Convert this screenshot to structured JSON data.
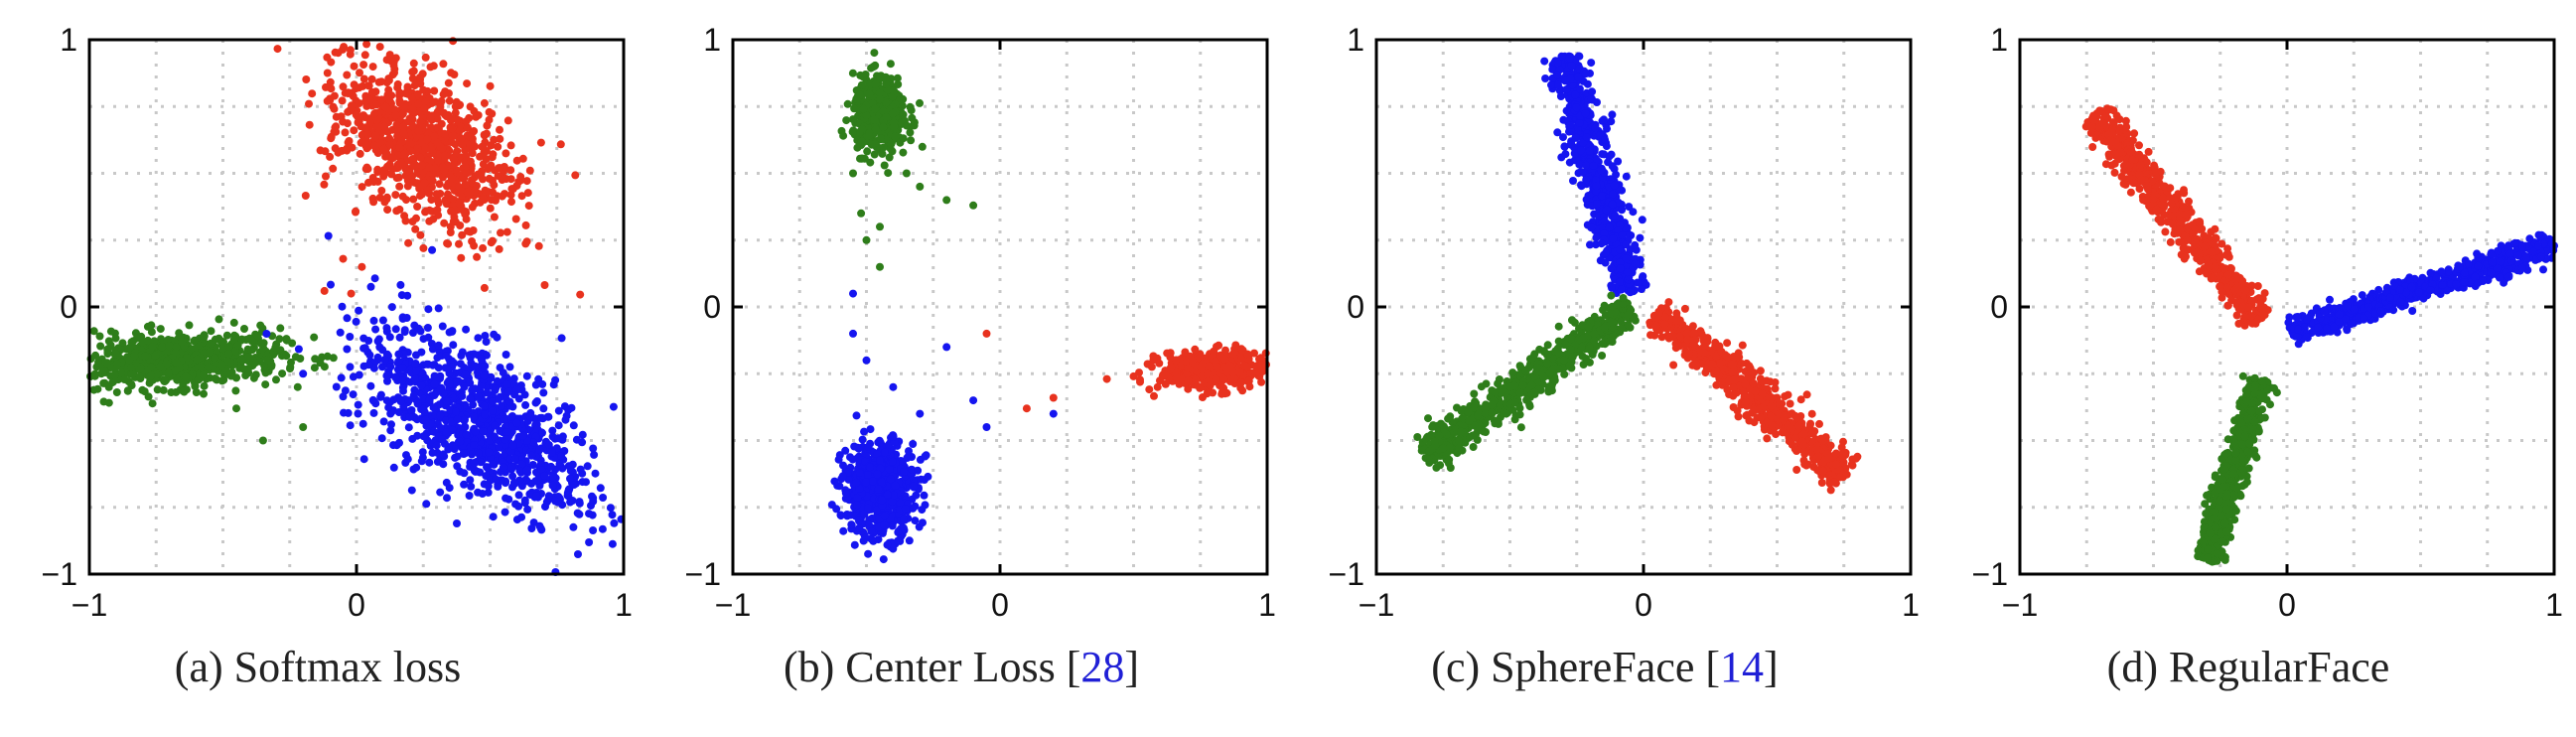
{
  "colors": {
    "red": "#e8321e",
    "green": "#2e7d1a",
    "blue": "#1515f0",
    "ref": "#1f1fd6",
    "grid": "#c8c8c8"
  },
  "chart_data": [
    {
      "type": "scatter",
      "caption_prefix": "(a) Softmax loss",
      "ref_open": "",
      "ref_num": "",
      "ref_close": "",
      "xlim": [
        -1,
        1
      ],
      "ylim": [
        -1,
        1
      ],
      "xticks": [
        "−1",
        "0",
        "1"
      ],
      "yticks": [
        "−1",
        "0",
        "1"
      ],
      "grid": true,
      "series": [
        {
          "color": "red",
          "count": 900,
          "shape": "blob",
          "center": [
            0.25,
            0.6
          ],
          "sx": 0.12,
          "sy": 0.2,
          "rot": 0.9
        },
        {
          "color": "green",
          "count": 700,
          "shape": "blob",
          "center": [
            -0.68,
            -0.2
          ],
          "sx": 0.2,
          "sy": 0.05,
          "rot": 0.05
        },
        {
          "color": "blue",
          "count": 1000,
          "shape": "blob",
          "center": [
            0.45,
            -0.42
          ],
          "sx": 0.25,
          "sy": 0.12,
          "rot": -0.6
        }
      ],
      "outliers": [
        {
          "color": "red",
          "points": [
            [
              -0.12,
              0.06
            ],
            [
              0.02,
              0.15
            ],
            [
              -0.05,
              0.18
            ],
            [
              -0.02,
              0.05
            ]
          ]
        },
        {
          "color": "green",
          "points": [
            [
              -0.22,
              -0.3
            ],
            [
              -0.35,
              -0.5
            ],
            [
              -0.45,
              -0.38
            ],
            [
              -0.2,
              -0.45
            ]
          ]
        },
        {
          "color": "blue",
          "points": [
            [
              -0.2,
              -0.25
            ],
            [
              0.05,
              -0.18
            ],
            [
              0.1,
              -0.05
            ]
          ]
        }
      ]
    },
    {
      "type": "scatter",
      "caption_prefix": "(b) Center Loss ",
      "ref_open": "[",
      "ref_num": "28",
      "ref_close": "]",
      "xlim": [
        -1,
        1
      ],
      "ylim": [
        -1,
        1
      ],
      "xticks": [
        "−1",
        "0",
        "1"
      ],
      "yticks": [
        "−1",
        "0",
        "1"
      ],
      "grid": true,
      "series": [
        {
          "color": "green",
          "count": 450,
          "shape": "blob",
          "center": [
            -0.45,
            0.72
          ],
          "sx": 0.05,
          "sy": 0.07,
          "rot": 0.0
        },
        {
          "color": "red",
          "count": 450,
          "shape": "blob",
          "center": [
            0.8,
            -0.24
          ],
          "sx": 0.1,
          "sy": 0.035,
          "rot": 0.0
        },
        {
          "color": "blue",
          "count": 600,
          "shape": "blob",
          "center": [
            -0.45,
            -0.68
          ],
          "sx": 0.07,
          "sy": 0.09,
          "rot": 0.0
        }
      ],
      "outliers": [
        {
          "color": "green",
          "points": [
            [
              -0.55,
              0.5
            ],
            [
              -0.35,
              0.5
            ],
            [
              -0.3,
              0.45
            ],
            [
              -0.2,
              0.4
            ],
            [
              -0.1,
              0.38
            ],
            [
              -0.45,
              0.3
            ],
            [
              -0.5,
              0.25
            ],
            [
              -0.45,
              0.15
            ],
            [
              -0.52,
              0.35
            ]
          ]
        },
        {
          "color": "blue",
          "points": [
            [
              -0.55,
              -0.1
            ],
            [
              -0.5,
              -0.2
            ],
            [
              -0.2,
              -0.15
            ],
            [
              -0.4,
              -0.3
            ],
            [
              -0.3,
              -0.4
            ],
            [
              -0.1,
              -0.35
            ],
            [
              -0.05,
              -0.45
            ],
            [
              0.2,
              -0.4
            ],
            [
              -0.55,
              0.05
            ]
          ]
        },
        {
          "color": "red",
          "points": [
            [
              -0.05,
              -0.1
            ],
            [
              0.1,
              -0.38
            ],
            [
              0.2,
              -0.34
            ],
            [
              0.4,
              -0.27
            ],
            [
              0.5,
              -0.26
            ]
          ]
        }
      ]
    },
    {
      "type": "scatter",
      "caption_prefix": "(c) SphereFace ",
      "ref_open": "[",
      "ref_num": "14",
      "ref_close": "]",
      "xlim": [
        -1,
        1
      ],
      "ylim": [
        -1,
        1
      ],
      "xticks": [
        "−1",
        "0",
        "1"
      ],
      "yticks": [
        "−1",
        "0",
        "1"
      ],
      "grid": true,
      "series": [
        {
          "color": "blue",
          "count": 700,
          "shape": "ray",
          "from": [
            -0.05,
            0.05
          ],
          "to": [
            -0.3,
            0.94
          ],
          "width": 0.035
        },
        {
          "color": "green",
          "count": 700,
          "shape": "ray",
          "from": [
            -0.05,
            0.0
          ],
          "to": [
            -0.82,
            -0.56
          ],
          "width": 0.035
        },
        {
          "color": "red",
          "count": 700,
          "shape": "ray",
          "from": [
            0.05,
            -0.02
          ],
          "to": [
            0.76,
            -0.63
          ],
          "width": 0.035
        }
      ],
      "outliers": []
    },
    {
      "type": "scatter",
      "caption_prefix": "(d) RegularFace",
      "ref_open": "",
      "ref_num": "",
      "ref_close": "",
      "xlim": [
        -1,
        1
      ],
      "ylim": [
        -1,
        1
      ],
      "xticks": [
        "−1",
        "0",
        "1"
      ],
      "yticks": [
        "−1",
        "0",
        "1"
      ],
      "grid": true,
      "series": [
        {
          "color": "red",
          "count": 700,
          "shape": "ray",
          "from": [
            -0.1,
            -0.05
          ],
          "to": [
            -0.72,
            0.72
          ],
          "width": 0.03
        },
        {
          "color": "blue",
          "count": 700,
          "shape": "ray",
          "from": [
            0.0,
            -0.1
          ],
          "to": [
            1.0,
            0.23
          ],
          "width": 0.025
        },
        {
          "color": "green",
          "count": 700,
          "shape": "ray",
          "from": [
            -0.1,
            -0.27
          ],
          "to": [
            -0.3,
            -0.95
          ],
          "width": 0.025
        }
      ],
      "outliers": []
    }
  ]
}
